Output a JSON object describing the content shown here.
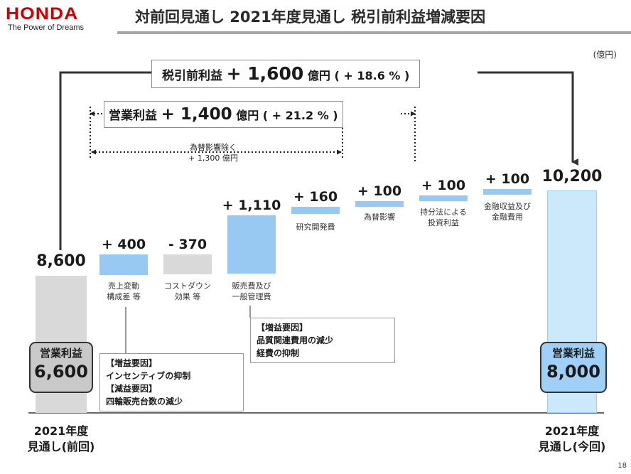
{
  "header": {
    "brand": "HONDA",
    "tagline": "The Power of Dreams",
    "title": "対前回見通し 2021年度見通し 税引前利益増減要因"
  },
  "unit_note": "(億円)",
  "page_number": "18",
  "summary": {
    "pretax": {
      "label": "税引前利益",
      "value": "+ 1,600",
      "unit": "億円",
      "pct": "( + 18.6 % )"
    },
    "operating": {
      "label": "営業利益",
      "value": "+ 1,400",
      "unit": "億円",
      "pct": "( + 21.2 % )"
    },
    "fx_excluded": {
      "line1": "為替影響除く",
      "line2": "+ 1,300 億円"
    }
  },
  "pills": {
    "previous": {
      "title": "営業利益",
      "value": "6,600"
    },
    "current": {
      "title": "営業利益",
      "value": "8,000"
    }
  },
  "notes": {
    "note1": [
      "【増益要因】",
      "インセンティブの抑制",
      "【減益要因】",
      "四輪販売台数の減少"
    ],
    "note2": [
      "【増益要因】",
      "品質関連費用の減少",
      "経費の抑制"
    ]
  },
  "chart_data": {
    "type": "bar",
    "subtype": "waterfall",
    "unit": "億円",
    "start": {
      "value": 8600,
      "label": "8,600",
      "category": [
        "2021年度",
        "見通し(前回)"
      ],
      "color": "#d9d9d9"
    },
    "end": {
      "value": 10200,
      "label": "10,200",
      "category": [
        "2021年度",
        "見通し(今回)"
      ],
      "color": "#cce8fb"
    },
    "steps": [
      {
        "value": 400,
        "label": "+ 400",
        "category": [
          "売上変動",
          "構成差 等"
        ],
        "color": "#97c9f3"
      },
      {
        "value": -370,
        "label": "- 370",
        "category": [
          "コストダウン",
          "効果 等"
        ],
        "color": "#d9d9d9"
      },
      {
        "value": 1110,
        "label": "+ 1,110",
        "category": [
          "販売費及び",
          "一般管理費"
        ],
        "color": "#97c9f3"
      },
      {
        "value": 160,
        "label": "+ 160",
        "category": [
          "研究開発費"
        ],
        "color": "#97c9f3"
      },
      {
        "value": 100,
        "label": "+ 100",
        "category": [
          "為替影響"
        ],
        "color": "#97c9f3"
      },
      {
        "value": 100,
        "label": "+ 100",
        "category": [
          "持分法による",
          "投資利益"
        ],
        "color": "#97c9f3"
      },
      {
        "value": 100,
        "label": "+ 100",
        "category": [
          "金融収益及び",
          "金融費用"
        ],
        "color": "#97c9f3"
      }
    ]
  }
}
